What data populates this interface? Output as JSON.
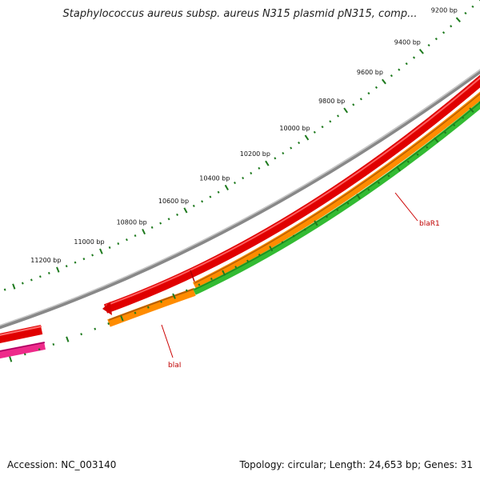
{
  "title": "Staphylococcus aureus subsp. aureus N315 plasmid pN315, comp...",
  "footer": {
    "accession": "Accession: NC_003140",
    "summary": "Topology: circular; Length: 24,653 bp; Genes: 31"
  },
  "ruler": {
    "labels": [
      "9200 bp",
      "9400 bp",
      "9600 bp",
      "9800 bp",
      "10000 bp",
      "10200 bp",
      "10400 bp",
      "10600 bp",
      "10800 bp",
      "11000 bp",
      "11200 bp"
    ]
  },
  "genes": [
    {
      "name": "blaR1",
      "color": "#cc0000"
    },
    {
      "name": "blaI",
      "color": "#cc0000"
    }
  ],
  "colors": {
    "ruler": "#1e7a1e",
    "backbone": "#888888",
    "red_feature": "#e00000",
    "orange_feature": "#ff8c00",
    "green_feature": "#33bb33",
    "pink_feature": "#ee2a8a"
  }
}
